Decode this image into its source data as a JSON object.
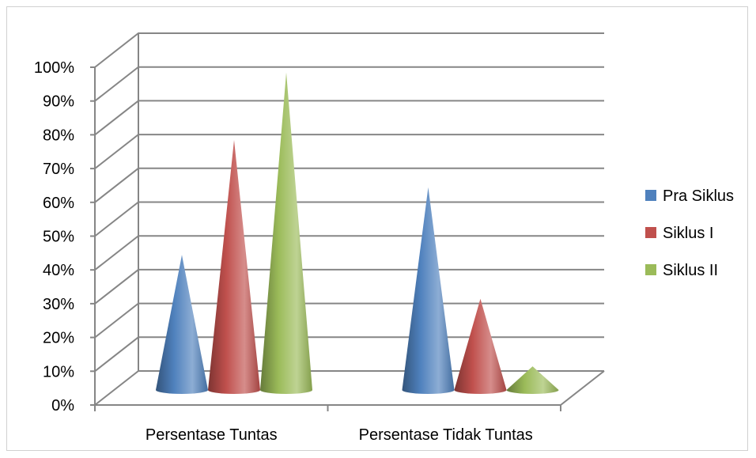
{
  "chart_data": {
    "type": "bar",
    "style": "3d-cone",
    "categories": [
      "Persentase Tuntas",
      "Persentase Tidak Tuntas"
    ],
    "series": [
      {
        "name": "Pra Siklus",
        "values": [
          40,
          60
        ],
        "color": "#4f81bd"
      },
      {
        "name": "Siklus I",
        "values": [
          74,
          27
        ],
        "color": "#c0504d"
      },
      {
        "name": "Siklus II",
        "values": [
          94,
          7
        ],
        "color": "#9bbb59"
      }
    ],
    "y_ticks": [
      "0%",
      "10%",
      "20%",
      "30%",
      "40%",
      "50%",
      "60%",
      "70%",
      "80%",
      "90%",
      "100%"
    ],
    "ylim": [
      0,
      100
    ],
    "grid": true,
    "legend": "right"
  }
}
